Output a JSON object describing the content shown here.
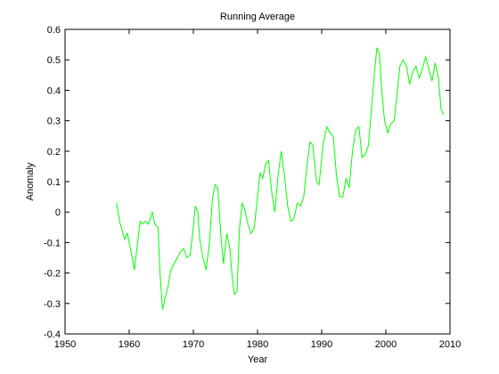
{
  "chart_data": {
    "type": "line",
    "title": "Running Average",
    "xlabel": "Year",
    "ylabel": "Anomaly",
    "xlim": [
      1950,
      2010
    ],
    "ylim": [
      -0.4,
      0.6
    ],
    "xticks": [
      1950,
      1960,
      1970,
      1980,
      1990,
      2000,
      2010
    ],
    "yticks": [
      -0.4,
      -0.3,
      -0.2,
      -0.1,
      0,
      0.1,
      0.2,
      0.3,
      0.4,
      0.5,
      0.6
    ],
    "grid": false,
    "series": [
      {
        "color": "#00ff00",
        "x": [
          1958.0,
          1958.5,
          1959.3,
          1959.7,
          1960.0,
          1960.5,
          1960.8,
          1961.2,
          1961.7,
          1962.0,
          1962.5,
          1963.0,
          1963.6,
          1964.0,
          1964.5,
          1964.8,
          1965.2,
          1965.6,
          1966.0,
          1966.5,
          1967.0,
          1967.5,
          1968.0,
          1968.5,
          1969.0,
          1969.5,
          1970.0,
          1970.3,
          1970.7,
          1971.0,
          1971.5,
          1972.0,
          1972.5,
          1973.0,
          1973.4,
          1973.8,
          1974.3,
          1974.7,
          1975.2,
          1975.7,
          1976.0,
          1976.4,
          1976.8,
          1977.2,
          1977.6,
          1978.0,
          1978.5,
          1979.0,
          1979.5,
          1980.0,
          1980.4,
          1980.8,
          1981.3,
          1981.7,
          1982.3,
          1982.7,
          1983.2,
          1983.7,
          1984.2,
          1984.7,
          1985.2,
          1985.7,
          1986.2,
          1986.7,
          1987.2,
          1987.8,
          1988.2,
          1988.6,
          1989.2,
          1989.6,
          1990.2,
          1990.8,
          1991.3,
          1991.8,
          1992.3,
          1992.8,
          1993.3,
          1993.8,
          1994.3,
          1994.8,
          1995.3,
          1995.8,
          1996.3,
          1996.8,
          1997.3,
          1997.8,
          1998.2,
          1998.6,
          1999.0,
          1999.4,
          1999.8,
          2000.3,
          2000.8,
          2001.3,
          2001.7,
          2002.2,
          2002.7,
          2003.2,
          2003.7,
          2004.2,
          2004.7,
          2005.2,
          2005.7,
          2006.2,
          2006.7,
          2007.2,
          2007.7,
          2008.2,
          2008.6,
          2009.0
        ],
        "values": [
          0.03,
          -0.03,
          -0.09,
          -0.07,
          -0.1,
          -0.15,
          -0.19,
          -0.12,
          -0.03,
          -0.04,
          -0.03,
          -0.04,
          0.0,
          -0.04,
          -0.05,
          -0.2,
          -0.32,
          -0.28,
          -0.25,
          -0.19,
          -0.17,
          -0.15,
          -0.13,
          -0.12,
          -0.15,
          -0.14,
          -0.05,
          0.02,
          0.0,
          -0.09,
          -0.15,
          -0.19,
          -0.1,
          0.05,
          0.09,
          0.08,
          -0.08,
          -0.17,
          -0.07,
          -0.12,
          -0.2,
          -0.27,
          -0.26,
          -0.05,
          0.03,
          0.01,
          -0.04,
          -0.07,
          -0.05,
          0.05,
          0.13,
          0.11,
          0.16,
          0.17,
          0.05,
          0.0,
          0.12,
          0.2,
          0.12,
          0.02,
          -0.03,
          -0.02,
          0.03,
          0.02,
          0.05,
          0.17,
          0.23,
          0.22,
          0.1,
          0.09,
          0.22,
          0.28,
          0.26,
          0.25,
          0.12,
          0.05,
          0.05,
          0.11,
          0.08,
          0.2,
          0.27,
          0.28,
          0.18,
          0.19,
          0.22,
          0.35,
          0.45,
          0.54,
          0.52,
          0.39,
          0.3,
          0.26,
          0.29,
          0.3,
          0.38,
          0.48,
          0.5,
          0.48,
          0.42,
          0.46,
          0.48,
          0.44,
          0.47,
          0.51,
          0.47,
          0.43,
          0.49,
          0.44,
          0.34,
          0.32
        ]
      }
    ]
  }
}
